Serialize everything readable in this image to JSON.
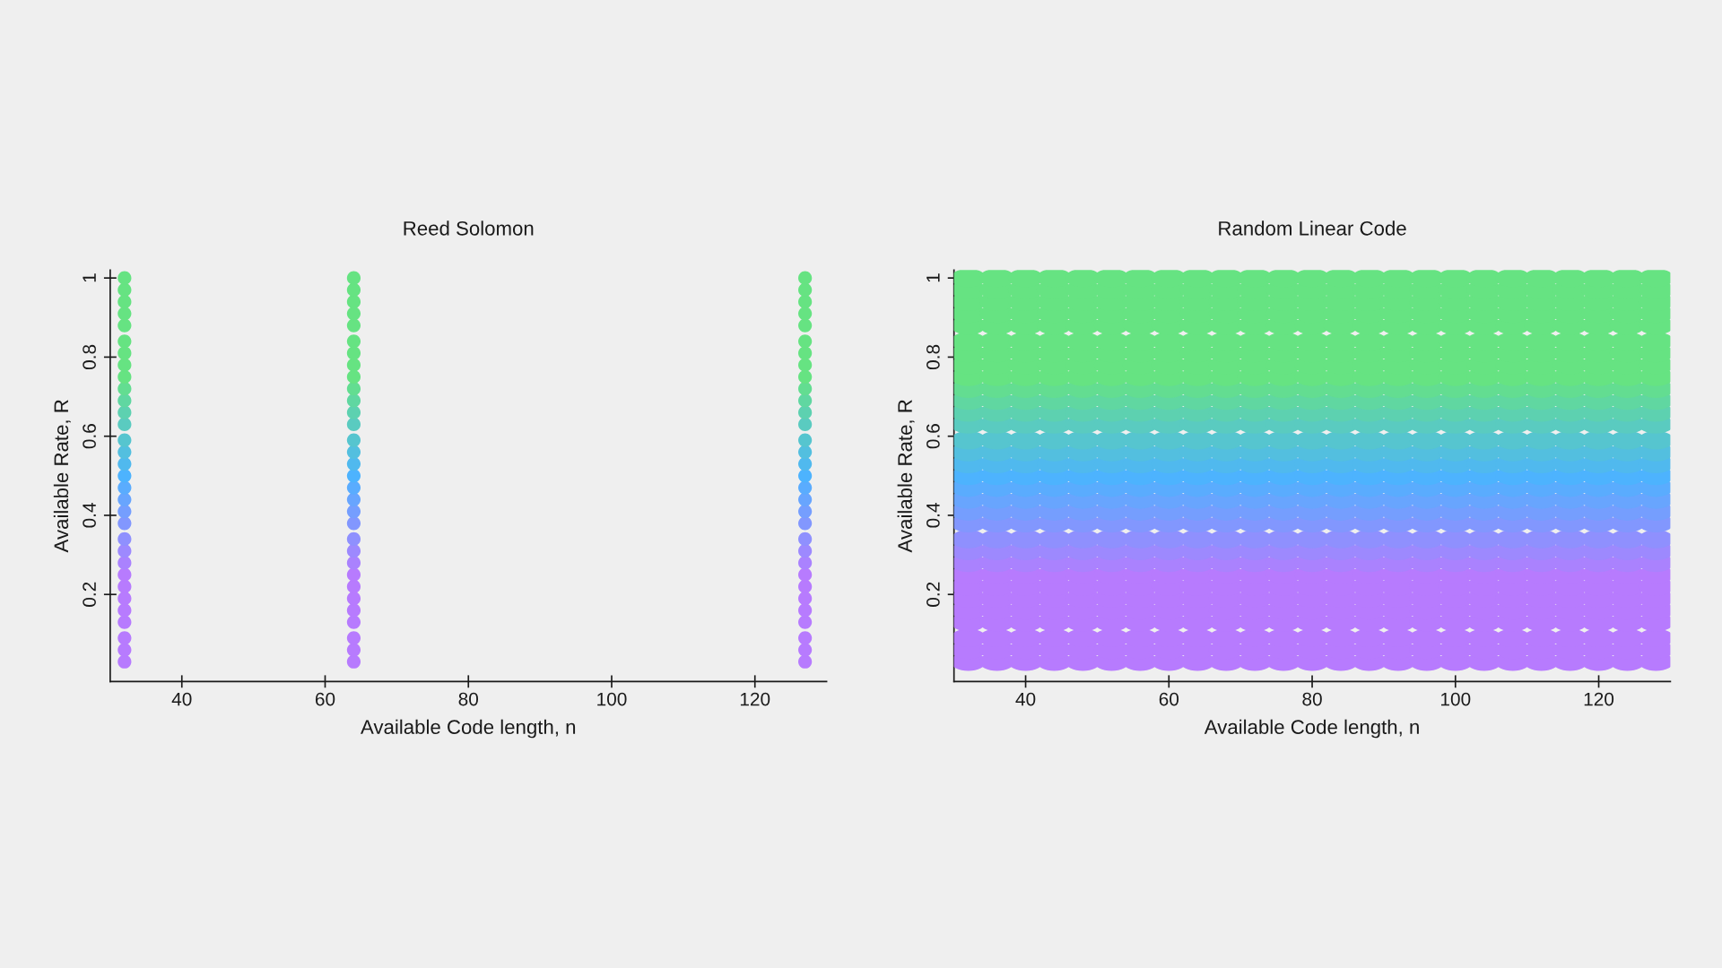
{
  "chart_data": [
    {
      "type": "scatter",
      "title": "Reed Solomon",
      "xlabel": "Available Code length, n",
      "ylabel": "Available Rate, R",
      "xlim": [
        30,
        130
      ],
      "xticks": [
        40,
        60,
        80,
        100,
        120
      ],
      "ylim": [
        -0.02,
        1.02
      ],
      "yticks": [
        0.2,
        0.4,
        0.6,
        0.8,
        1
      ],
      "marker": "circle",
      "series": [
        {
          "color": "#b77bfe",
          "x": [
            32,
            64,
            127
          ],
          "values": [
            0.03,
            0.03,
            0.03
          ]
        },
        {
          "color": "#b77bfe",
          "x": [
            32,
            64,
            127
          ],
          "values": [
            0.06,
            0.06,
            0.06
          ]
        },
        {
          "color": "#b77bfe",
          "x": [
            32,
            64,
            127
          ],
          "values": [
            0.09,
            0.09,
            0.09
          ]
        },
        {
          "color": "#b77bfe",
          "x": [
            32,
            64,
            127
          ],
          "values": [
            0.13,
            0.13,
            0.13
          ]
        },
        {
          "color": "#b77bfe",
          "x": [
            32,
            64,
            127
          ],
          "values": [
            0.16,
            0.16,
            0.16
          ]
        },
        {
          "color": "#b77bfe",
          "x": [
            32,
            64,
            127
          ],
          "values": [
            0.19,
            0.19,
            0.19
          ]
        },
        {
          "color": "#b77bfe",
          "x": [
            32,
            64,
            127
          ],
          "values": [
            0.22,
            0.22,
            0.22
          ]
        },
        {
          "color": "#b77bfe",
          "x": [
            32,
            64,
            127
          ],
          "values": [
            0.25,
            0.25,
            0.25
          ]
        },
        {
          "color": "#aa82fe",
          "x": [
            32,
            64,
            127
          ],
          "values": [
            0.28,
            0.28,
            0.28
          ]
        },
        {
          "color": "#9d89fe",
          "x": [
            32,
            64,
            127
          ],
          "values": [
            0.31,
            0.31,
            0.31
          ]
        },
        {
          "color": "#8f90fe",
          "x": [
            32,
            64,
            127
          ],
          "values": [
            0.34,
            0.34,
            0.34
          ]
        },
        {
          "color": "#8297fe",
          "x": [
            32,
            64,
            127
          ],
          "values": [
            0.38,
            0.38,
            0.38
          ]
        },
        {
          "color": "#759efe",
          "x": [
            32,
            64,
            127
          ],
          "values": [
            0.41,
            0.41,
            0.41
          ]
        },
        {
          "color": "#68a5fe",
          "x": [
            32,
            64,
            127
          ],
          "values": [
            0.44,
            0.44,
            0.44
          ]
        },
        {
          "color": "#5aacfe",
          "x": [
            32,
            64,
            127
          ],
          "values": [
            0.47,
            0.47,
            0.47
          ]
        },
        {
          "color": "#4db3fe",
          "x": [
            32,
            64,
            127
          ],
          "values": [
            0.5,
            0.5,
            0.5
          ]
        },
        {
          "color": "#50b9ee",
          "x": [
            32,
            64,
            127
          ],
          "values": [
            0.53,
            0.53,
            0.53
          ]
        },
        {
          "color": "#53bfdf",
          "x": [
            32,
            64,
            127
          ],
          "values": [
            0.56,
            0.56,
            0.56
          ]
        },
        {
          "color": "#56c5cf",
          "x": [
            32,
            64,
            127
          ],
          "values": [
            0.59,
            0.59,
            0.59
          ]
        },
        {
          "color": "#5acbc0",
          "x": [
            32,
            64,
            127
          ],
          "values": [
            0.63,
            0.63,
            0.63
          ]
        },
        {
          "color": "#5dd1b0",
          "x": [
            32,
            64,
            127
          ],
          "values": [
            0.66,
            0.66,
            0.66
          ]
        },
        {
          "color": "#60d7a1",
          "x": [
            32,
            64,
            127
          ],
          "values": [
            0.69,
            0.69,
            0.69
          ]
        },
        {
          "color": "#63dd91",
          "x": [
            32,
            64,
            127
          ],
          "values": [
            0.72,
            0.72,
            0.72
          ]
        },
        {
          "color": "#66e382",
          "x": [
            32,
            64,
            127
          ],
          "values": [
            0.75,
            0.75,
            0.75
          ]
        },
        {
          "color": "#66e382",
          "x": [
            32,
            64,
            127
          ],
          "values": [
            0.78,
            0.78,
            0.78
          ]
        },
        {
          "color": "#66e382",
          "x": [
            32,
            64,
            127
          ],
          "values": [
            0.81,
            0.81,
            0.81
          ]
        },
        {
          "color": "#66e382",
          "x": [
            32,
            64,
            127
          ],
          "values": [
            0.84,
            0.84,
            0.84
          ]
        },
        {
          "color": "#66e382",
          "x": [
            32,
            64,
            127
          ],
          "values": [
            0.88,
            0.88,
            0.88
          ]
        },
        {
          "color": "#66e382",
          "x": [
            32,
            64,
            127
          ],
          "values": [
            0.91,
            0.91,
            0.91
          ]
        },
        {
          "color": "#66e382",
          "x": [
            32,
            64,
            127
          ],
          "values": [
            0.94,
            0.94,
            0.94
          ]
        },
        {
          "color": "#66e382",
          "x": [
            32,
            64,
            127
          ],
          "values": [
            0.97,
            0.97,
            0.97
          ]
        },
        {
          "color": "#66e382",
          "x": [
            32,
            64,
            127
          ],
          "values": [
            1,
            1,
            1
          ]
        }
      ]
    },
    {
      "type": "scatter",
      "title": "Random Linear Code",
      "xlabel": "Available Code length, n",
      "ylabel": "Available Rate, R",
      "xlim": [
        30,
        130
      ],
      "xticks": [
        40,
        60,
        80,
        100,
        120
      ],
      "ylim": [
        -0.02,
        1.02
      ],
      "yticks": [
        0.2,
        0.4,
        0.6,
        0.8,
        1
      ],
      "marker": "circle",
      "x": [
        32,
        36,
        40,
        44,
        48,
        52,
        56,
        60,
        64,
        68,
        72,
        76,
        80,
        84,
        88,
        92,
        96,
        100,
        104,
        108,
        112,
        116,
        120,
        124,
        128
      ],
      "series": [
        {
          "color": "#b77bfe",
          "values": [
            0.03,
            0.03,
            0.03,
            0.03,
            0.03,
            0.03,
            0.03,
            0.03,
            0.03,
            0.03,
            0.03,
            0.03,
            0.03,
            0.03,
            0.03,
            0.03,
            0.03,
            0.03,
            0.03,
            0.03,
            0.03,
            0.03,
            0.03,
            0.03,
            0.03
          ]
        },
        {
          "color": "#b77bfe",
          "values": [
            0.06,
            0.06,
            0.06,
            0.06,
            0.06,
            0.06,
            0.06,
            0.06,
            0.06,
            0.06,
            0.06,
            0.06,
            0.06,
            0.06,
            0.06,
            0.06,
            0.06,
            0.06,
            0.06,
            0.06,
            0.06,
            0.06,
            0.06,
            0.06,
            0.06
          ]
        },
        {
          "color": "#b77bfe",
          "values": [
            0.09,
            0.09,
            0.09,
            0.09,
            0.09,
            0.09,
            0.09,
            0.09,
            0.09,
            0.09,
            0.09,
            0.09,
            0.09,
            0.09,
            0.09,
            0.09,
            0.09,
            0.09,
            0.09,
            0.09,
            0.09,
            0.09,
            0.09,
            0.09,
            0.09
          ]
        },
        {
          "color": "#b77bfe",
          "values": [
            0.13,
            0.13,
            0.13,
            0.13,
            0.13,
            0.13,
            0.13,
            0.13,
            0.13,
            0.13,
            0.13,
            0.13,
            0.13,
            0.13,
            0.13,
            0.13,
            0.13,
            0.13,
            0.13,
            0.13,
            0.13,
            0.13,
            0.13,
            0.13,
            0.13
          ]
        },
        {
          "color": "#b77bfe",
          "values": [
            0.16,
            0.16,
            0.16,
            0.16,
            0.16,
            0.16,
            0.16,
            0.16,
            0.16,
            0.16,
            0.16,
            0.16,
            0.16,
            0.16,
            0.16,
            0.16,
            0.16,
            0.16,
            0.16,
            0.16,
            0.16,
            0.16,
            0.16,
            0.16,
            0.16
          ]
        },
        {
          "color": "#b77bfe",
          "values": [
            0.19,
            0.19,
            0.19,
            0.19,
            0.19,
            0.19,
            0.19,
            0.19,
            0.19,
            0.19,
            0.19,
            0.19,
            0.19,
            0.19,
            0.19,
            0.19,
            0.19,
            0.19,
            0.19,
            0.19,
            0.19,
            0.19,
            0.19,
            0.19,
            0.19
          ]
        },
        {
          "color": "#b77bfe",
          "values": [
            0.22,
            0.22,
            0.22,
            0.22,
            0.22,
            0.22,
            0.22,
            0.22,
            0.22,
            0.22,
            0.22,
            0.22,
            0.22,
            0.22,
            0.22,
            0.22,
            0.22,
            0.22,
            0.22,
            0.22,
            0.22,
            0.22,
            0.22,
            0.22,
            0.22
          ]
        },
        {
          "color": "#b77bfe",
          "values": [
            0.25,
            0.25,
            0.25,
            0.25,
            0.25,
            0.25,
            0.25,
            0.25,
            0.25,
            0.25,
            0.25,
            0.25,
            0.25,
            0.25,
            0.25,
            0.25,
            0.25,
            0.25,
            0.25,
            0.25,
            0.25,
            0.25,
            0.25,
            0.25,
            0.25
          ]
        },
        {
          "color": "#aa82fe",
          "values": [
            0.28,
            0.28,
            0.28,
            0.28,
            0.28,
            0.28,
            0.28,
            0.28,
            0.28,
            0.28,
            0.28,
            0.28,
            0.28,
            0.28,
            0.28,
            0.28,
            0.28,
            0.28,
            0.28,
            0.28,
            0.28,
            0.28,
            0.28,
            0.28,
            0.28
          ]
        },
        {
          "color": "#9d89fe",
          "values": [
            0.31,
            0.31,
            0.31,
            0.31,
            0.31,
            0.31,
            0.31,
            0.31,
            0.31,
            0.31,
            0.31,
            0.31,
            0.31,
            0.31,
            0.31,
            0.31,
            0.31,
            0.31,
            0.31,
            0.31,
            0.31,
            0.31,
            0.31,
            0.31,
            0.31
          ]
        },
        {
          "color": "#8f90fe",
          "values": [
            0.34,
            0.34,
            0.34,
            0.34,
            0.34,
            0.34,
            0.34,
            0.34,
            0.34,
            0.34,
            0.34,
            0.34,
            0.34,
            0.34,
            0.34,
            0.34,
            0.34,
            0.34,
            0.34,
            0.34,
            0.34,
            0.34,
            0.34,
            0.34,
            0.34
          ]
        },
        {
          "color": "#8297fe",
          "values": [
            0.38,
            0.38,
            0.38,
            0.38,
            0.38,
            0.38,
            0.38,
            0.38,
            0.38,
            0.38,
            0.38,
            0.38,
            0.38,
            0.38,
            0.38,
            0.38,
            0.38,
            0.38,
            0.38,
            0.38,
            0.38,
            0.38,
            0.38,
            0.38,
            0.38
          ]
        },
        {
          "color": "#759efe",
          "values": [
            0.41,
            0.41,
            0.41,
            0.41,
            0.41,
            0.41,
            0.41,
            0.41,
            0.41,
            0.41,
            0.41,
            0.41,
            0.41,
            0.41,
            0.41,
            0.41,
            0.41,
            0.41,
            0.41,
            0.41,
            0.41,
            0.41,
            0.41,
            0.41,
            0.41
          ]
        },
        {
          "color": "#68a5fe",
          "values": [
            0.44,
            0.44,
            0.44,
            0.44,
            0.44,
            0.44,
            0.44,
            0.44,
            0.44,
            0.44,
            0.44,
            0.44,
            0.44,
            0.44,
            0.44,
            0.44,
            0.44,
            0.44,
            0.44,
            0.44,
            0.44,
            0.44,
            0.44,
            0.44,
            0.44
          ]
        },
        {
          "color": "#5aacfe",
          "values": [
            0.47,
            0.47,
            0.47,
            0.47,
            0.47,
            0.47,
            0.47,
            0.47,
            0.47,
            0.47,
            0.47,
            0.47,
            0.47,
            0.47,
            0.47,
            0.47,
            0.47,
            0.47,
            0.47,
            0.47,
            0.47,
            0.47,
            0.47,
            0.47,
            0.47
          ]
        },
        {
          "color": "#4db3fe",
          "values": [
            0.5,
            0.5,
            0.5,
            0.5,
            0.5,
            0.5,
            0.5,
            0.5,
            0.5,
            0.5,
            0.5,
            0.5,
            0.5,
            0.5,
            0.5,
            0.5,
            0.5,
            0.5,
            0.5,
            0.5,
            0.5,
            0.5,
            0.5,
            0.5,
            0.5
          ]
        },
        {
          "color": "#50b9ee",
          "values": [
            0.53,
            0.53,
            0.53,
            0.53,
            0.53,
            0.53,
            0.53,
            0.53,
            0.53,
            0.53,
            0.53,
            0.53,
            0.53,
            0.53,
            0.53,
            0.53,
            0.53,
            0.53,
            0.53,
            0.53,
            0.53,
            0.53,
            0.53,
            0.53,
            0.53
          ]
        },
        {
          "color": "#53bfdf",
          "values": [
            0.56,
            0.56,
            0.56,
            0.56,
            0.56,
            0.56,
            0.56,
            0.56,
            0.56,
            0.56,
            0.56,
            0.56,
            0.56,
            0.56,
            0.56,
            0.56,
            0.56,
            0.56,
            0.56,
            0.56,
            0.56,
            0.56,
            0.56,
            0.56,
            0.56
          ]
        },
        {
          "color": "#56c5cf",
          "values": [
            0.59,
            0.59,
            0.59,
            0.59,
            0.59,
            0.59,
            0.59,
            0.59,
            0.59,
            0.59,
            0.59,
            0.59,
            0.59,
            0.59,
            0.59,
            0.59,
            0.59,
            0.59,
            0.59,
            0.59,
            0.59,
            0.59,
            0.59,
            0.59,
            0.59
          ]
        },
        {
          "color": "#5acbc0",
          "values": [
            0.63,
            0.63,
            0.63,
            0.63,
            0.63,
            0.63,
            0.63,
            0.63,
            0.63,
            0.63,
            0.63,
            0.63,
            0.63,
            0.63,
            0.63,
            0.63,
            0.63,
            0.63,
            0.63,
            0.63,
            0.63,
            0.63,
            0.63,
            0.63,
            0.63
          ]
        },
        {
          "color": "#5dd1b0",
          "values": [
            0.66,
            0.66,
            0.66,
            0.66,
            0.66,
            0.66,
            0.66,
            0.66,
            0.66,
            0.66,
            0.66,
            0.66,
            0.66,
            0.66,
            0.66,
            0.66,
            0.66,
            0.66,
            0.66,
            0.66,
            0.66,
            0.66,
            0.66,
            0.66,
            0.66
          ]
        },
        {
          "color": "#60d7a1",
          "values": [
            0.69,
            0.69,
            0.69,
            0.69,
            0.69,
            0.69,
            0.69,
            0.69,
            0.69,
            0.69,
            0.69,
            0.69,
            0.69,
            0.69,
            0.69,
            0.69,
            0.69,
            0.69,
            0.69,
            0.69,
            0.69,
            0.69,
            0.69,
            0.69,
            0.69
          ]
        },
        {
          "color": "#63dd91",
          "values": [
            0.72,
            0.72,
            0.72,
            0.72,
            0.72,
            0.72,
            0.72,
            0.72,
            0.72,
            0.72,
            0.72,
            0.72,
            0.72,
            0.72,
            0.72,
            0.72,
            0.72,
            0.72,
            0.72,
            0.72,
            0.72,
            0.72,
            0.72,
            0.72,
            0.72
          ]
        },
        {
          "color": "#66e382",
          "values": [
            0.75,
            0.75,
            0.75,
            0.75,
            0.75,
            0.75,
            0.75,
            0.75,
            0.75,
            0.75,
            0.75,
            0.75,
            0.75,
            0.75,
            0.75,
            0.75,
            0.75,
            0.75,
            0.75,
            0.75,
            0.75,
            0.75,
            0.75,
            0.75,
            0.75
          ]
        },
        {
          "color": "#66e382",
          "values": [
            0.78,
            0.78,
            0.78,
            0.78,
            0.78,
            0.78,
            0.78,
            0.78,
            0.78,
            0.78,
            0.78,
            0.78,
            0.78,
            0.78,
            0.78,
            0.78,
            0.78,
            0.78,
            0.78,
            0.78,
            0.78,
            0.78,
            0.78,
            0.78,
            0.78
          ]
        },
        {
          "color": "#66e382",
          "values": [
            0.81,
            0.81,
            0.81,
            0.81,
            0.81,
            0.81,
            0.81,
            0.81,
            0.81,
            0.81,
            0.81,
            0.81,
            0.81,
            0.81,
            0.81,
            0.81,
            0.81,
            0.81,
            0.81,
            0.81,
            0.81,
            0.81,
            0.81,
            0.81,
            0.81
          ]
        },
        {
          "color": "#66e382",
          "values": [
            0.84,
            0.84,
            0.84,
            0.84,
            0.84,
            0.84,
            0.84,
            0.84,
            0.84,
            0.84,
            0.84,
            0.84,
            0.84,
            0.84,
            0.84,
            0.84,
            0.84,
            0.84,
            0.84,
            0.84,
            0.84,
            0.84,
            0.84,
            0.84,
            0.84
          ]
        },
        {
          "color": "#66e382",
          "values": [
            0.88,
            0.88,
            0.88,
            0.88,
            0.88,
            0.88,
            0.88,
            0.88,
            0.88,
            0.88,
            0.88,
            0.88,
            0.88,
            0.88,
            0.88,
            0.88,
            0.88,
            0.88,
            0.88,
            0.88,
            0.88,
            0.88,
            0.88,
            0.88,
            0.88
          ]
        },
        {
          "color": "#66e382",
          "values": [
            0.91,
            0.91,
            0.91,
            0.91,
            0.91,
            0.91,
            0.91,
            0.91,
            0.91,
            0.91,
            0.91,
            0.91,
            0.91,
            0.91,
            0.91,
            0.91,
            0.91,
            0.91,
            0.91,
            0.91,
            0.91,
            0.91,
            0.91,
            0.91,
            0.91
          ]
        },
        {
          "color": "#66e382",
          "values": [
            0.94,
            0.94,
            0.94,
            0.94,
            0.94,
            0.94,
            0.94,
            0.94,
            0.94,
            0.94,
            0.94,
            0.94,
            0.94,
            0.94,
            0.94,
            0.94,
            0.94,
            0.94,
            0.94,
            0.94,
            0.94,
            0.94,
            0.94,
            0.94,
            0.94
          ]
        },
        {
          "color": "#66e382",
          "values": [
            0.97,
            0.97,
            0.97,
            0.97,
            0.97,
            0.97,
            0.97,
            0.97,
            0.97,
            0.97,
            0.97,
            0.97,
            0.97,
            0.97,
            0.97,
            0.97,
            0.97,
            0.97,
            0.97,
            0.97,
            0.97,
            0.97,
            0.97,
            0.97,
            0.97
          ]
        },
        {
          "color": "#66e382",
          "values": [
            1,
            1,
            1,
            1,
            1,
            1,
            1,
            1,
            1,
            1,
            1,
            1,
            1,
            1,
            1,
            1,
            1,
            1,
            1,
            1,
            1,
            1,
            1,
            1,
            1
          ]
        }
      ]
    }
  ]
}
